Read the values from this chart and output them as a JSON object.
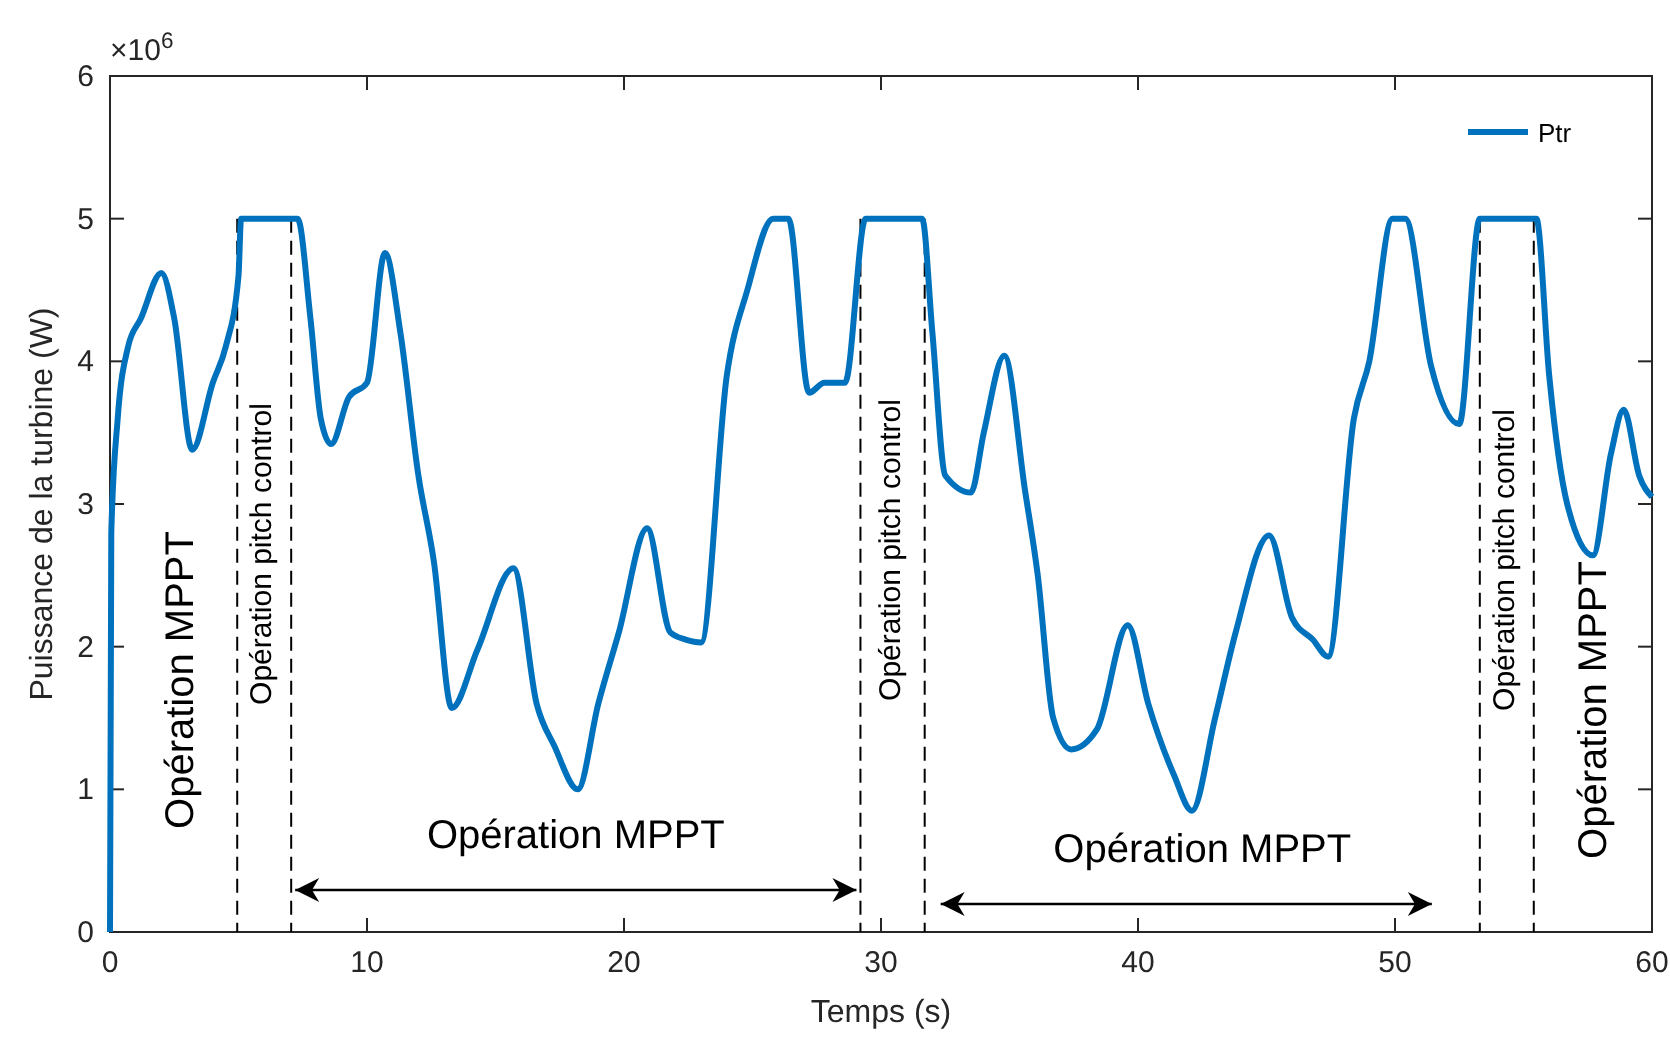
{
  "chart_data": {
    "type": "line",
    "xlabel": "Temps (s)",
    "ylabel": "Puissance de la turbine (W)",
    "xlim": [
      0,
      60
    ],
    "xticks": [
      0,
      10,
      20,
      30,
      40,
      50,
      60
    ],
    "ylim": [
      0,
      6
    ],
    "yticks": [
      0,
      1,
      2,
      3,
      4,
      5,
      6
    ],
    "legend": "top right",
    "grid": false,
    "line_style": "solid",
    "marker": "none",
    "series": [
      {
        "name": "Ptr",
        "color": "#0072bd",
        "x": [
          0,
          0.05,
          0.3,
          0.7,
          1.2,
          2,
          2.5,
          3.2,
          4,
          4.5,
          5,
          5.1,
          7.3,
          7.8,
          8.2,
          8.6,
          9.3,
          10,
          10.7,
          11.3,
          12,
          12.6,
          13.3,
          14.3,
          15.7,
          16.6,
          17.3,
          18.2,
          19,
          19.8,
          20.9,
          21.8,
          22.4,
          23,
          24,
          24.8,
          25.8,
          26.4,
          27.2,
          27.8,
          28.6,
          29.4,
          31.6,
          32,
          32.5,
          33.5,
          34,
          34.8,
          35.6,
          36.1,
          36.7,
          37.4,
          38.4,
          39.6,
          40.4,
          41.4,
          42.1,
          43,
          43.8,
          45.1,
          46,
          46.8,
          47.4,
          48.4,
          49,
          49.9,
          50.4,
          51.4,
          52.5,
          53.3,
          55.5,
          56,
          56.7,
          57.7,
          58.4,
          58.9,
          59.5,
          60
        ],
        "values": [
          0,
          2.8,
          3.6,
          4.1,
          4.3,
          4.62,
          4.3,
          3.38,
          3.85,
          4.1,
          4.6,
          5,
          5,
          4.3,
          3.6,
          3.42,
          3.75,
          3.85,
          4.76,
          4.2,
          3.2,
          2.6,
          1.57,
          1.98,
          2.55,
          1.6,
          1.3,
          1,
          1.6,
          2.1,
          2.83,
          2.1,
          2.05,
          2.03,
          3.9,
          4.5,
          5,
          5,
          3.78,
          3.85,
          3.85,
          5,
          5,
          4.2,
          3.2,
          3.08,
          3.5,
          4.04,
          3.1,
          2.5,
          1.5,
          1.28,
          1.42,
          2.15,
          1.6,
          1.1,
          0.85,
          1.5,
          2.1,
          2.78,
          2.2,
          2.05,
          1.93,
          3.6,
          4,
          5,
          5,
          3.97,
          3.56,
          5,
          5,
          3.9,
          3,
          2.64,
          3.35,
          3.66,
          3.2,
          3.05
        ]
      }
    ],
    "ref_lines": [
      {
        "axis": "x",
        "value": 4.95,
        "line_style": "dashed",
        "color": "#000000"
      },
      {
        "axis": "x",
        "value": 7.05,
        "line_style": "dashed",
        "color": "#000000"
      },
      {
        "axis": "x",
        "value": 29.2,
        "line_style": "dashed",
        "color": "#000000"
      },
      {
        "axis": "x",
        "value": 31.7,
        "line_style": "dashed",
        "color": "#000000"
      },
      {
        "axis": "x",
        "value": 53.3,
        "line_style": "dashed",
        "color": "#000000"
      },
      {
        "axis": "x",
        "value": 55.4,
        "line_style": "dashed",
        "color": "#000000"
      }
    ],
    "annotations": [
      "×10$^{6}$",
      "Opération MPPT",
      "Opération pitch control",
      "Opération MPPT",
      "Opération pitch control",
      "Opération MPPT",
      "Opération pitch control",
      "Opération MPPT"
    ]
  }
}
